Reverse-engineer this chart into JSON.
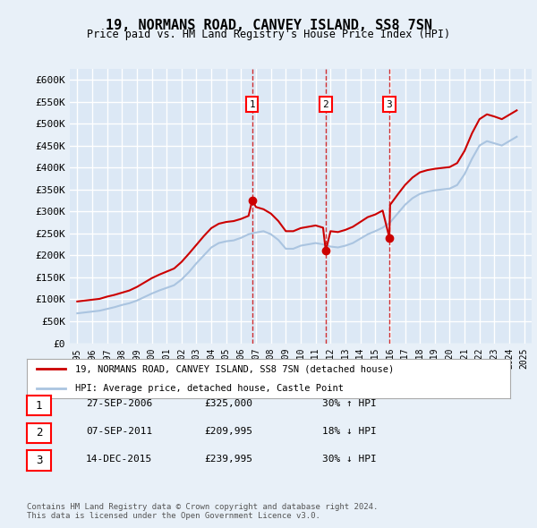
{
  "title": "19, NORMANS ROAD, CANVEY ISLAND, SS8 7SN",
  "subtitle": "Price paid vs. HM Land Registry's House Price Index (HPI)",
  "ylabel": "",
  "background_color": "#e8f0f8",
  "plot_bg_color": "#dce8f5",
  "grid_color": "#ffffff",
  "hpi_color": "#aac4e0",
  "price_color": "#cc0000",
  "sale_marker_color": "#cc0000",
  "dashed_line_color": "#cc0000",
  "ylim": [
    0,
    625000
  ],
  "yticks": [
    0,
    50000,
    100000,
    150000,
    200000,
    250000,
    300000,
    350000,
    400000,
    450000,
    500000,
    550000,
    600000
  ],
  "ytick_labels": [
    "£0",
    "£50K",
    "£100K",
    "£150K",
    "£200K",
    "£250K",
    "£300K",
    "£350K",
    "£400K",
    "£450K",
    "£500K",
    "£550K",
    "£600K"
  ],
  "sales": [
    {
      "date_num": 2006.74,
      "price": 325000,
      "label": "1"
    },
    {
      "date_num": 2011.68,
      "price": 209995,
      "label": "2"
    },
    {
      "date_num": 2015.95,
      "price": 239995,
      "label": "3"
    }
  ],
  "legend_entries": [
    "19, NORMANS ROAD, CANVEY ISLAND, SS8 7SN (detached house)",
    "HPI: Average price, detached house, Castle Point"
  ],
  "table_rows": [
    {
      "num": "1",
      "date": "27-SEP-2006",
      "price": "£325,000",
      "hpi": "30% ↑ HPI"
    },
    {
      "num": "2",
      "date": "07-SEP-2011",
      "price": "£209,995",
      "hpi": "18% ↓ HPI"
    },
    {
      "num": "3",
      "date": "14-DEC-2015",
      "price": "£239,995",
      "hpi": "30% ↓ HPI"
    }
  ],
  "footer": "Contains HM Land Registry data © Crown copyright and database right 2024.\nThis data is licensed under the Open Government Licence v3.0.",
  "hpi_data": {
    "years": [
      1995,
      1995.5,
      1996,
      1996.5,
      1997,
      1997.5,
      1998,
      1998.5,
      1999,
      1999.5,
      2000,
      2000.5,
      2001,
      2001.5,
      2002,
      2002.5,
      2003,
      2003.5,
      2004,
      2004.5,
      2005,
      2005.5,
      2006,
      2006.5,
      2007,
      2007.5,
      2008,
      2008.5,
      2009,
      2009.5,
      2010,
      2010.5,
      2011,
      2011.5,
      2012,
      2012.5,
      2013,
      2013.5,
      2014,
      2014.5,
      2015,
      2015.5,
      2016,
      2016.5,
      2017,
      2017.5,
      2018,
      2018.5,
      2019,
      2019.5,
      2020,
      2020.5,
      2021,
      2021.5,
      2022,
      2022.5,
      2023,
      2023.5,
      2024,
      2024.5
    ],
    "values": [
      68000,
      70000,
      72000,
      74000,
      78000,
      82000,
      87000,
      91000,
      97000,
      105000,
      113000,
      120000,
      126000,
      132000,
      145000,
      162000,
      182000,
      200000,
      218000,
      228000,
      232000,
      234000,
      240000,
      248000,
      252000,
      255000,
      248000,
      235000,
      215000,
      215000,
      222000,
      225000,
      228000,
      225000,
      220000,
      218000,
      222000,
      228000,
      238000,
      248000,
      255000,
      263000,
      275000,
      295000,
      315000,
      330000,
      340000,
      345000,
      348000,
      350000,
      352000,
      360000,
      385000,
      420000,
      450000,
      460000,
      455000,
      450000,
      460000,
      470000
    ]
  },
  "price_data": {
    "years": [
      1995,
      1995.5,
      1996,
      1996.5,
      1997,
      1997.5,
      1998,
      1998.5,
      1999,
      1999.5,
      2000,
      2000.5,
      2001,
      2001.5,
      2002,
      2002.5,
      2003,
      2003.5,
      2004,
      2004.5,
      2005,
      2005.5,
      2006,
      2006.5,
      2006.74,
      2007,
      2007.5,
      2008,
      2008.5,
      2009,
      2009.5,
      2010,
      2010.5,
      2011,
      2011.5,
      2011.68,
      2012,
      2012.5,
      2013,
      2013.5,
      2014,
      2014.5,
      2015,
      2015.5,
      2015.95,
      2016,
      2016.5,
      2017,
      2017.5,
      2018,
      2018.5,
      2019,
      2019.5,
      2020,
      2020.5,
      2021,
      2021.5,
      2022,
      2022.5,
      2023,
      2023.5,
      2024,
      2024.5
    ],
    "values": [
      95000,
      97000,
      99000,
      101000,
      106000,
      110000,
      115000,
      120000,
      128000,
      138000,
      148000,
      156000,
      163000,
      170000,
      185000,
      204000,
      224000,
      244000,
      262000,
      272000,
      276000,
      278000,
      283000,
      290000,
      325000,
      310000,
      305000,
      295000,
      278000,
      255000,
      255000,
      262000,
      265000,
      268000,
      263000,
      209995,
      255000,
      253000,
      258000,
      265000,
      276000,
      287000,
      293000,
      302000,
      239995,
      315000,
      338000,
      360000,
      377000,
      389000,
      394000,
      397000,
      399000,
      401000,
      410000,
      438000,
      478000,
      510000,
      521000,
      516000,
      510000,
      520000,
      530000
    ]
  }
}
